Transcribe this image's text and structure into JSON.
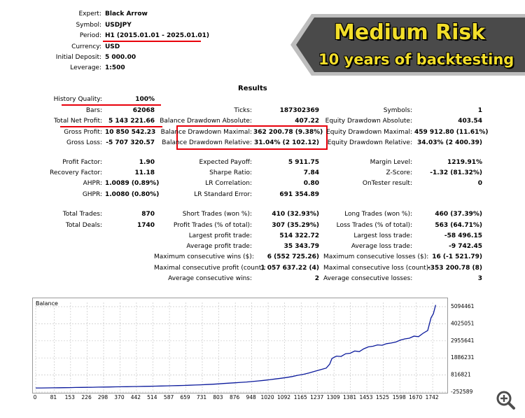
{
  "header": [
    {
      "label": "Expert:",
      "value": "Black Arrow"
    },
    {
      "label": "Symbol:",
      "value": "USDJPY"
    },
    {
      "label": "Period:",
      "value": "H1 (2015.01.01 - 2025.01.01)"
    },
    {
      "label": "Currency:",
      "value": "USD"
    },
    {
      "label": "Initial Deposit:",
      "value": "5 000.00"
    },
    {
      "label": "Leverage:",
      "value": "1:500"
    }
  ],
  "banner": {
    "line1": "Medium Risk",
    "line2": "10 years of backtesting"
  },
  "results_title": "Results",
  "col1": [
    {
      "label": "History Quality:",
      "value": "100%"
    },
    {
      "label": "Bars:",
      "value": "62068"
    },
    {
      "label": "Total Net Profit:",
      "value": "5 143 221.66"
    },
    {
      "label": "Gross Profit:",
      "value": "10 850 542.23"
    },
    {
      "label": "Gross Loss:",
      "value": "-5 707 320.57"
    },
    {
      "label": "Profit Factor:",
      "value": "1.90"
    },
    {
      "label": "Recovery Factor:",
      "value": "11.18"
    },
    {
      "label": "AHPR:",
      "value": "1.0089 (0.89%)"
    },
    {
      "label": "GHPR:",
      "value": "1.0080 (0.80%)"
    },
    {
      "label": "Total Trades:",
      "value": "870"
    },
    {
      "label": "Total Deals:",
      "value": "1740"
    }
  ],
  "col2": [
    {
      "label": "Ticks:",
      "value": "187302369"
    },
    {
      "label": "Balance Drawdown Absolute:",
      "value": "407.22"
    },
    {
      "label": "Balance Drawdown Maximal:",
      "value": "362 200.78 (9.38%)"
    },
    {
      "label": "Balance Drawdown Relative:",
      "value": "31.04% (2 102.12)"
    },
    {
      "label": "Expected Payoff:",
      "value": "5 911.75"
    },
    {
      "label": "Sharpe Ratio:",
      "value": "7.84"
    },
    {
      "label": "LR Correlation:",
      "value": "0.80"
    },
    {
      "label": "LR Standard Error:",
      "value": "691 354.89"
    },
    {
      "label": "Short Trades (won %):",
      "value": "410 (32.93%)"
    },
    {
      "label": "Profit Trades (% of total):",
      "value": "307 (35.29%)"
    },
    {
      "label": "Largest profit trade:",
      "value": "514 322.72"
    },
    {
      "label": "Average profit trade:",
      "value": "35 343.79"
    },
    {
      "label": "Maximum consecutive wins ($):",
      "value": "6 (552 725.26)"
    },
    {
      "label": "Maximal consecutive profit (count):",
      "value": "1 057 637.22 (4)"
    },
    {
      "label": "Average consecutive wins:",
      "value": "2"
    }
  ],
  "col3": [
    {
      "label": "Symbols:",
      "value": "1"
    },
    {
      "label": "Equity Drawdown Absolute:",
      "value": "403.54"
    },
    {
      "label": "Equity Drawdown Maximal:",
      "value": "459 912.80 (11.61%)"
    },
    {
      "label": "Equity Drawdown Relative:",
      "value": "34.03% (2 400.39)"
    },
    {
      "label": "Margin Level:",
      "value": "1219.91%"
    },
    {
      "label": "Z-Score:",
      "value": "-1.32 (81.32%)"
    },
    {
      "label": "OnTester result:",
      "value": "0"
    },
    {
      "label": "Long Trades (won %):",
      "value": "460 (37.39%)"
    },
    {
      "label": "Loss Trades (% of total):",
      "value": "563 (64.71%)"
    },
    {
      "label": "Largest loss trade:",
      "value": "-58 496.15"
    },
    {
      "label": "Average loss trade:",
      "value": "-9 742.45"
    },
    {
      "label": "Maximum consecutive losses ($):",
      "value": "16 (-1 521.79)"
    },
    {
      "label": "Maximal consecutive loss (count):",
      "value": "-353 200.78 (8)"
    },
    {
      "label": "Average consecutive losses:",
      "value": "3"
    }
  ],
  "colors": {
    "highlight": "#e8000b",
    "balance_line": "#0b1a9c",
    "banner_text": "#f2de2a",
    "banner_bg": "#4a4a4a"
  },
  "icons": {
    "zoom": "zoom-in-icon"
  },
  "chart_data": {
    "type": "line",
    "title": "Balance",
    "series": [],
    "x": [
      0,
      25,
      50,
      75,
      100,
      125,
      150,
      175,
      200,
      225,
      250,
      275,
      300,
      325,
      350,
      375,
      400,
      425,
      450,
      475,
      500,
      525,
      550,
      575,
      600,
      625,
      650,
      675,
      700,
      725,
      750,
      775,
      800,
      825,
      850,
      875,
      900,
      925,
      950,
      975,
      1000,
      1025,
      1050,
      1075,
      1100,
      1125,
      1150,
      1175,
      1200,
      1225,
      1250,
      1275,
      1290,
      1300,
      1320,
      1340,
      1360,
      1380,
      1400,
      1420,
      1440,
      1460,
      1480,
      1500,
      1520,
      1540,
      1560,
      1580,
      1600,
      1620,
      1640,
      1660,
      1680,
      1700,
      1720,
      1735,
      1745,
      1755
    ],
    "values": [
      5000,
      8000,
      12000,
      15000,
      20000,
      24000,
      30000,
      35000,
      40000,
      46000,
      52000,
      57000,
      62000,
      68000,
      75000,
      80000,
      86000,
      92000,
      98000,
      105000,
      112000,
      120000,
      128000,
      136000,
      146000,
      155000,
      165000,
      178000,
      190000,
      205000,
      222000,
      240000,
      262000,
      285000,
      310000,
      330000,
      355000,
      380000,
      410000,
      445000,
      480000,
      520000,
      565000,
      610000,
      660000,
      720000,
      800000,
      860000,
      950000,
      1050000,
      1150000,
      1250000,
      1500000,
      1850000,
      2000000,
      1980000,
      2150000,
      2180000,
      2320000,
      2280000,
      2460000,
      2580000,
      2620000,
      2700000,
      2680000,
      2780000,
      2820000,
      2880000,
      3000000,
      3080000,
      3120000,
      3250000,
      3220000,
      3430000,
      3600000,
      4400000,
      4650000,
      5200000
    ],
    "ylim": [
      -252589,
      5094461
    ],
    "xlim": [
      0,
      1800
    ],
    "yticks": [
      "5094461",
      "4025051",
      "2955641",
      "1886231",
      "816821",
      "-252589"
    ],
    "ytick_values": [
      5094461,
      4025051,
      2955641,
      1886231,
      816821,
      -252589
    ],
    "xticks": [
      "0",
      "81",
      "153",
      "226",
      "298",
      "370",
      "442",
      "514",
      "587",
      "659",
      "731",
      "803",
      "876",
      "948",
      "1020",
      "1092",
      "1165",
      "1237",
      "1309",
      "1381",
      "1453",
      "1525",
      "1598",
      "1670",
      "1742"
    ],
    "xtick_values": [
      0,
      81,
      153,
      226,
      298,
      370,
      442,
      514,
      587,
      659,
      731,
      803,
      876,
      948,
      1020,
      1092,
      1165,
      1237,
      1309,
      1381,
      1453,
      1525,
      1598,
      1670,
      1742
    ],
    "grid": true
  }
}
